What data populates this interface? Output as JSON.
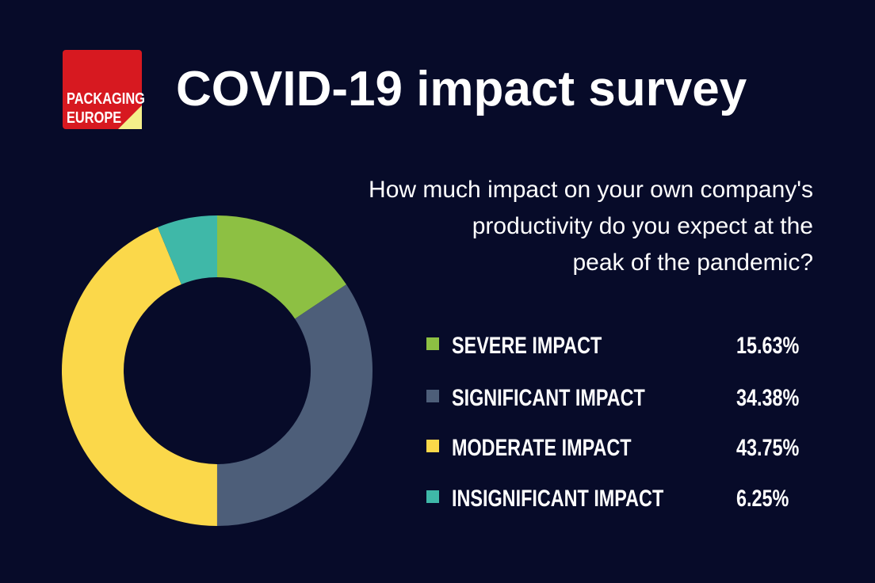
{
  "logo": {
    "lines": [
      "PACKAGING",
      "EUROPE"
    ]
  },
  "chart_data": {
    "type": "donut",
    "title": "COVID-19 impact survey",
    "subtitle_lines": [
      "How much impact on your own company's",
      "productivity do you expect at the",
      "peak of the pandemic?"
    ],
    "categories": [
      "SEVERE IMPACT",
      "SIGNIFICANT IMPACT",
      "MODERATE IMPACT",
      "INSIGNIFICANT IMPACT"
    ],
    "values": [
      15.63,
      34.38,
      43.75,
      6.25
    ],
    "value_labels": [
      "15.63%",
      "34.38%",
      "43.75%",
      "6.25%"
    ],
    "colors": [
      "#8dc043",
      "#4d5e79",
      "#fbd84a",
      "#3fb8a8"
    ]
  }
}
